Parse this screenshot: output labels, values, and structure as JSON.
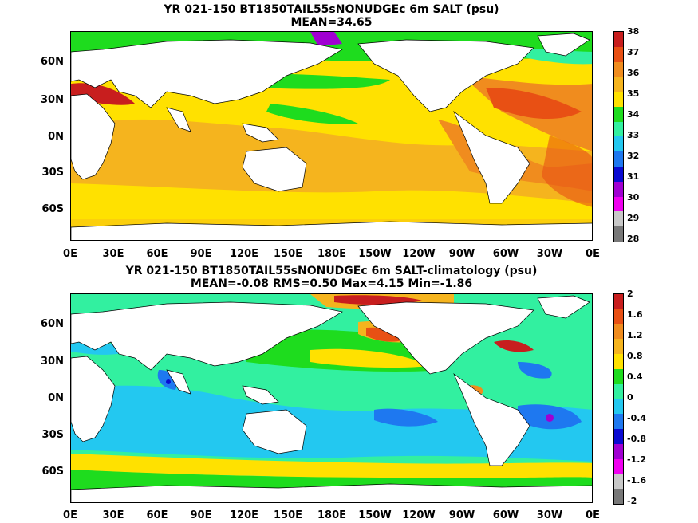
{
  "top_panel": {
    "title_line1": "YR 021-150 BT1850TAIL55sNONUDGEc 6m SALT (psu)",
    "title_line2": "MEAN=34.65",
    "colorbar_labels": [
      "38",
      "37",
      "36",
      "35",
      "34",
      "33",
      "32",
      "31",
      "30",
      "29",
      "28"
    ],
    "colorbar_colors": [
      "#c81e1e",
      "#e85014",
      "#f08c1e",
      "#f5b41e",
      "#ffe100",
      "#1edc1e",
      "#32f0a0",
      "#23c8f0",
      "#1e78f0",
      "#0a0ad2",
      "#a000d2",
      "#f000f0",
      "#c8c8c8",
      "#787878"
    ]
  },
  "bottom_panel": {
    "title_line1": "YR 021-150 BT1850TAIL55sNONUDGEc 6m SALT-climatology (psu)",
    "title_line2": "MEAN=-0.08   RMS=0.50   Max=4.15   Min=-1.86",
    "colorbar_labels": [
      "2",
      "1.6",
      "1.2",
      "0.8",
      "0.4",
      "0",
      "-0.4",
      "-0.8",
      "-1.2",
      "-1.6",
      "-2"
    ],
    "colorbar_colors": [
      "#c81e1e",
      "#e85014",
      "#f08c1e",
      "#f5b41e",
      "#ffe100",
      "#1edc1e",
      "#32f0a0",
      "#23c8f0",
      "#1e78f0",
      "#0a0ad2",
      "#a000d2",
      "#f000f0",
      "#c8c8c8",
      "#787878"
    ]
  },
  "lat_labels": [
    "60N",
    "30N",
    "0N",
    "30S",
    "60S"
  ],
  "lon_labels": [
    "0E",
    "30E",
    "60E",
    "90E",
    "120E",
    "150E",
    "180E",
    "150W",
    "120W",
    "90W",
    "60W",
    "30W",
    "0E"
  ],
  "colors": {
    "land": "#ffffff",
    "top_ocean_base": "#ffe100",
    "bottom_ocean_base": "#32f0a0"
  }
}
